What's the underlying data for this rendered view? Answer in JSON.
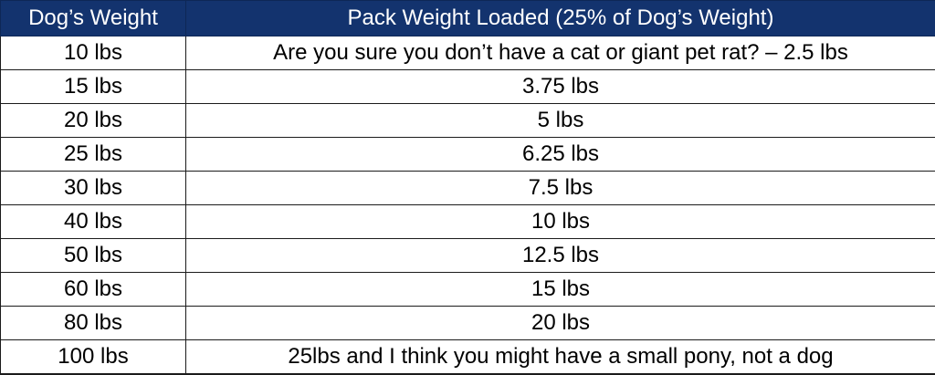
{
  "table": {
    "headers": [
      "Dog’s Weight",
      "Pack Weight Loaded (25% of Dog’s Weight)"
    ],
    "rows": [
      [
        "10 lbs",
        "Are you sure you don’t have a cat or giant pet rat? – 2.5 lbs"
      ],
      [
        "15 lbs",
        "3.75 lbs"
      ],
      [
        "20 lbs",
        "5 lbs"
      ],
      [
        "25 lbs",
        "6.25 lbs"
      ],
      [
        "30 lbs",
        "7.5 lbs"
      ],
      [
        "40 lbs",
        "10 lbs"
      ],
      [
        "50 lbs",
        "12.5 lbs"
      ],
      [
        "60 lbs",
        "15 lbs"
      ],
      [
        "80 lbs",
        "20 lbs"
      ],
      [
        "100 lbs",
        "25lbs and I think you might have a small pony, not a dog"
      ]
    ]
  },
  "colors": {
    "header_background": "#13336e",
    "header_text": "#ffffff",
    "cell_text": "#000000",
    "grid_line": "#1b1b1b"
  }
}
